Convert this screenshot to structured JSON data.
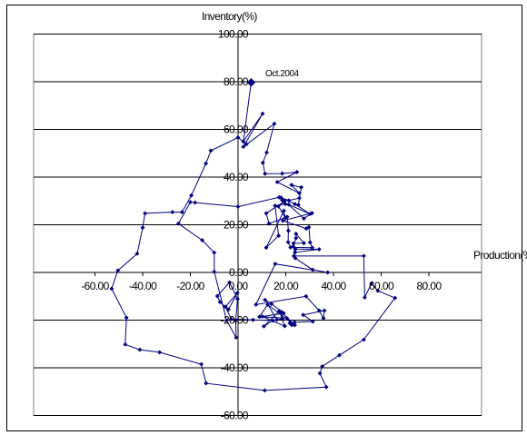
{
  "chart_data": {
    "type": "line",
    "title": "",
    "xlabel": "Production(%)",
    "ylabel": "Inventory(%)",
    "xlim": [
      -60,
      80
    ],
    "ylim": [
      -60,
      100
    ],
    "x_ticks": [
      "-60.00",
      "-40.00",
      "-20.00",
      "0.00",
      "20.00",
      "40.00",
      "60.00",
      "80.00"
    ],
    "y_ticks": [
      "100.00",
      "80.00",
      "60.00",
      "40.00",
      "20.00",
      "0.00",
      "-20.00",
      "-40.00",
      "-60.00"
    ],
    "grid": "horizontal",
    "legend": "none",
    "series_color": "#000080",
    "annotation": {
      "text": "Oct.2004",
      "x": 5.5,
      "y": 79.7
    },
    "series": [
      {
        "points": [
          [
            5.5,
            79.7
          ],
          [
            2.2,
            54.9
          ],
          [
            10.3,
            66.6
          ],
          [
            2.2,
            52.7
          ],
          [
            15.2,
            62.4
          ],
          [
            12.0,
            50.3
          ],
          [
            10.4,
            46.0
          ],
          [
            11.3,
            41.4
          ],
          [
            18.5,
            41.5
          ],
          [
            24.7,
            42.1
          ],
          [
            16.4,
            37.9
          ],
          [
            25.7,
            33.2
          ],
          [
            22.4,
            36.7
          ],
          [
            26.5,
            35.7
          ],
          [
            25.3,
            28.3
          ],
          [
            25.7,
            31.2
          ],
          [
            21.3,
            30.2
          ],
          [
            18.0,
            31.4
          ],
          [
            23.8,
            28.7
          ],
          [
            30.2,
            24.5
          ],
          [
            21.2,
            28.5
          ],
          [
            27.6,
            22.6
          ],
          [
            31.0,
            24.9
          ],
          [
            18.8,
            21.7
          ],
          [
            28.6,
            18.4
          ],
          [
            29.7,
            19.0
          ],
          [
            30.2,
            12.6
          ],
          [
            31.1,
            10.4
          ],
          [
            22.0,
            10.5
          ],
          [
            21.0,
            12.7
          ],
          [
            21.1,
            17.5
          ],
          [
            20.6,
            23.3
          ],
          [
            13.0,
            20.5
          ],
          [
            11.8,
            24.8
          ],
          [
            19.5,
            29.8
          ],
          [
            16.9,
            27.7
          ],
          [
            19.8,
            22.9
          ],
          [
            19.2,
            25.9
          ],
          [
            11.8,
            10.4
          ],
          [
            17.0,
            15.4
          ],
          [
            15.5,
            28.0
          ],
          [
            19.8,
            28.7
          ],
          [
            18.5,
            30.3
          ],
          [
            17.2,
            31.5
          ],
          [
            0.0,
            27.6
          ],
          [
            -18.0,
            29.3
          ],
          [
            -20.0,
            29.5
          ],
          [
            -25.0,
            20.5
          ],
          [
            -15.0,
            13.5
          ],
          [
            -10.0,
            8.3
          ],
          [
            -10.0,
            0.3
          ],
          [
            -4.8,
            -20.1
          ],
          [
            -0.8,
            -27.3
          ],
          [
            -1.0,
            -20.2
          ],
          [
            -0.2,
            -11.1
          ],
          [
            -3.6,
            -4.2
          ],
          [
            -8.7,
            -9.9
          ],
          [
            -7.6,
            -12.4
          ],
          [
            -4.0,
            -15.5
          ],
          [
            -0.3,
            -8.6
          ],
          [
            -5.3,
            -14.4
          ],
          [
            -2.9,
            -19.5
          ],
          [
            6.3,
            -19.9
          ],
          [
            14.6,
            -20.2
          ],
          [
            10.8,
            -22.6
          ],
          [
            17.3,
            -16.2
          ],
          [
            19.6,
            -22.5
          ],
          [
            10.2,
            -18.5
          ],
          [
            19.1,
            -17.1
          ],
          [
            14.0,
            -13.2
          ],
          [
            11.3,
            -11.5
          ],
          [
            16.3,
            -19.8
          ],
          [
            18.5,
            -19.5
          ],
          [
            18.2,
            -16.6
          ],
          [
            23.8,
            -22.1
          ],
          [
            12.4,
            -13.5
          ],
          [
            9.0,
            -18.6
          ],
          [
            20.5,
            -19.2
          ],
          [
            22.5,
            -22.0
          ],
          [
            21.7,
            -21.3
          ],
          [
            23.7,
            -20.9
          ],
          [
            31.3,
            -20.6
          ],
          [
            27.3,
            -17.8
          ],
          [
            36.2,
            -16.0
          ],
          [
            35.8,
            -19.2
          ],
          [
            34.0,
            -16.0
          ],
          [
            28.5,
            -10.0
          ],
          [
            7.5,
            -13.5
          ],
          [
            15.6,
            3.6
          ],
          [
            37.6,
            0.0
          ],
          [
            31.3,
            1.1
          ],
          [
            24.0,
            6.0
          ],
          [
            23.2,
            12.2
          ],
          [
            27.6,
            12.3
          ],
          [
            24.3,
            16.2
          ],
          [
            24.3,
            14.4
          ],
          [
            23.2,
            10.9
          ],
          [
            24.1,
            9.8
          ],
          [
            34.0,
            9.7
          ],
          [
            23.9,
            8.4
          ],
          [
            23.4,
            6.9
          ],
          [
            52.7,
            6.9
          ],
          [
            53.1,
            -10.5
          ],
          [
            56.0,
            -4.5
          ],
          [
            58.6,
            -7.7
          ],
          [
            65.8,
            -10.7
          ],
          [
            52.7,
            -28.2
          ],
          [
            42.5,
            -34.7
          ],
          [
            35.3,
            -39.4
          ],
          [
            34.3,
            -42.3
          ],
          [
            37.0,
            -48.1
          ],
          [
            11.2,
            -49.5
          ],
          [
            -13.4,
            -46.5
          ],
          [
            -15.4,
            -38.5
          ],
          [
            -32.9,
            -33.5
          ],
          [
            -41.2,
            -32.4
          ],
          [
            -47.3,
            -30.2
          ],
          [
            -46.8,
            -19.0
          ],
          [
            -53.0,
            -6.8
          ],
          [
            -50.4,
            0.8
          ],
          [
            -42.3,
            7.9
          ],
          [
            -40.0,
            18.8
          ],
          [
            -39.0,
            24.8
          ],
          [
            -27.5,
            25.3
          ],
          [
            -23.5,
            25.3
          ],
          [
            -19.6,
            32.3
          ],
          [
            -13.5,
            45.7
          ],
          [
            -11.4,
            51.1
          ],
          [
            0.0,
            56.6
          ],
          [
            3.5,
            53.8
          ]
        ]
      }
    ]
  }
}
